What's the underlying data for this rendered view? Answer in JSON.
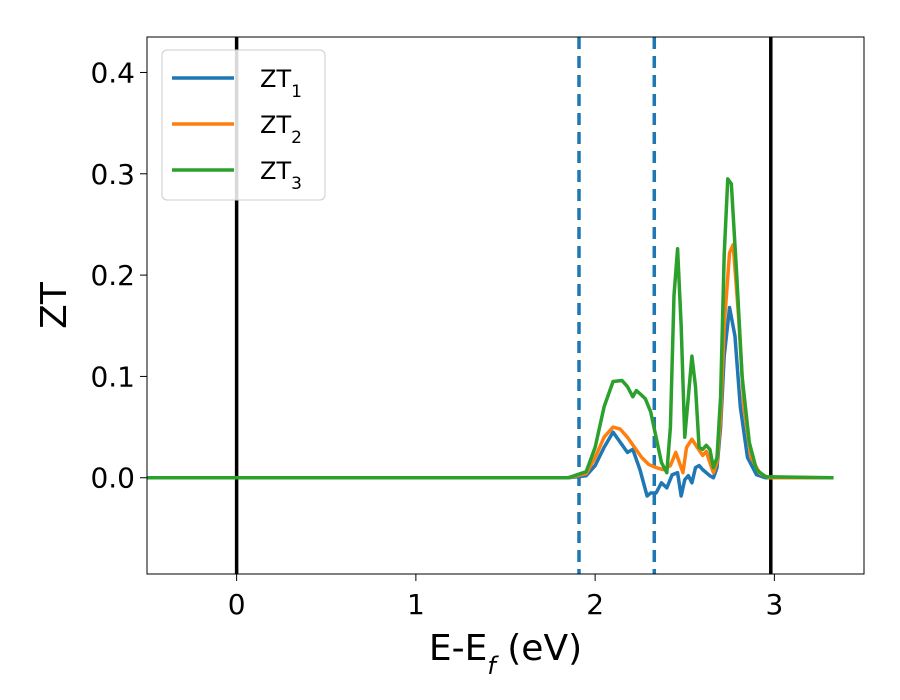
{
  "chart_data": {
    "type": "line",
    "xlabel": "E-E_f (eV)",
    "ylabel": "ZT",
    "xlim": [
      -0.5,
      3.5
    ],
    "ylim": [
      -0.095,
      0.435
    ],
    "xticks": [
      0,
      1,
      2,
      3
    ],
    "yticks": [
      0.0,
      0.1,
      0.2,
      0.3,
      0.4
    ],
    "xtick_labels": [
      "0",
      "1",
      "2",
      "3"
    ],
    "ytick_labels": [
      "0.0",
      "0.1",
      "0.2",
      "0.3",
      "0.4"
    ],
    "grid": false,
    "legend_position": "upper-left",
    "vlines_solid": [
      0.0,
      2.98
    ],
    "vlines_dashed": [
      1.91,
      2.33
    ],
    "series": [
      {
        "name": "ZT_1",
        "color": "#1f77b4",
        "points": [
          [
            -0.5,
            0
          ],
          [
            1.85,
            0
          ],
          [
            1.95,
            0.002
          ],
          [
            2.0,
            0.012
          ],
          [
            2.05,
            0.03
          ],
          [
            2.1,
            0.045
          ],
          [
            2.14,
            0.035
          ],
          [
            2.18,
            0.025
          ],
          [
            2.21,
            0.028
          ],
          [
            2.25,
            0.008
          ],
          [
            2.29,
            -0.018
          ],
          [
            2.31,
            -0.015
          ],
          [
            2.34,
            -0.015
          ],
          [
            2.37,
            -0.005
          ],
          [
            2.4,
            -0.01
          ],
          [
            2.43,
            0.003
          ],
          [
            2.46,
            0.005
          ],
          [
            2.48,
            -0.018
          ],
          [
            2.5,
            -0.002
          ],
          [
            2.52,
            0.002
          ],
          [
            2.54,
            -0.005
          ],
          [
            2.56,
            0.01
          ],
          [
            2.58,
            0.012
          ],
          [
            2.6,
            0.008
          ],
          [
            2.62,
            0.005
          ],
          [
            2.64,
            0.002
          ],
          [
            2.66,
            0.0
          ],
          [
            2.68,
            0.01
          ],
          [
            2.7,
            0.05
          ],
          [
            2.72,
            0.12
          ],
          [
            2.75,
            0.168
          ],
          [
            2.78,
            0.14
          ],
          [
            2.81,
            0.07
          ],
          [
            2.85,
            0.02
          ],
          [
            2.9,
            0.003
          ],
          [
            2.95,
            0.0
          ],
          [
            3.33,
            0
          ]
        ]
      },
      {
        "name": "ZT_2",
        "color": "#ff7f0e",
        "points": [
          [
            -0.5,
            0
          ],
          [
            1.85,
            0
          ],
          [
            1.95,
            0.004
          ],
          [
            2.0,
            0.02
          ],
          [
            2.05,
            0.04
          ],
          [
            2.1,
            0.05
          ],
          [
            2.14,
            0.048
          ],
          [
            2.18,
            0.04
          ],
          [
            2.22,
            0.03
          ],
          [
            2.26,
            0.02
          ],
          [
            2.3,
            0.013
          ],
          [
            2.34,
            0.01
          ],
          [
            2.38,
            0.008
          ],
          [
            2.42,
            0.012
          ],
          [
            2.45,
            0.025
          ],
          [
            2.47,
            0.015
          ],
          [
            2.49,
            0.005
          ],
          [
            2.51,
            0.03
          ],
          [
            2.54,
            0.038
          ],
          [
            2.57,
            0.03
          ],
          [
            2.6,
            0.022
          ],
          [
            2.62,
            0.026
          ],
          [
            2.64,
            0.015
          ],
          [
            2.66,
            0.005
          ],
          [
            2.68,
            0.015
          ],
          [
            2.7,
            0.06
          ],
          [
            2.72,
            0.15
          ],
          [
            2.75,
            0.222
          ],
          [
            2.77,
            0.23
          ],
          [
            2.8,
            0.16
          ],
          [
            2.83,
            0.07
          ],
          [
            2.87,
            0.02
          ],
          [
            2.92,
            0.004
          ],
          [
            2.97,
            0.0
          ],
          [
            3.33,
            0
          ]
        ]
      },
      {
        "name": "ZT_3",
        "color": "#2ca02c",
        "points": [
          [
            -0.5,
            0
          ],
          [
            1.85,
            0
          ],
          [
            1.95,
            0.006
          ],
          [
            2.0,
            0.03
          ],
          [
            2.05,
            0.07
          ],
          [
            2.1,
            0.095
          ],
          [
            2.15,
            0.096
          ],
          [
            2.18,
            0.09
          ],
          [
            2.21,
            0.08
          ],
          [
            2.23,
            0.086
          ],
          [
            2.25,
            0.083
          ],
          [
            2.28,
            0.078
          ],
          [
            2.31,
            0.065
          ],
          [
            2.34,
            0.04
          ],
          [
            2.37,
            0.015
          ],
          [
            2.4,
            0.005
          ],
          [
            2.42,
            0.05
          ],
          [
            2.44,
            0.18
          ],
          [
            2.46,
            0.226
          ],
          [
            2.48,
            0.15
          ],
          [
            2.5,
            0.04
          ],
          [
            2.52,
            0.08
          ],
          [
            2.54,
            0.12
          ],
          [
            2.56,
            0.09
          ],
          [
            2.58,
            0.03
          ],
          [
            2.6,
            0.028
          ],
          [
            2.62,
            0.032
          ],
          [
            2.64,
            0.028
          ],
          [
            2.66,
            0.01
          ],
          [
            2.68,
            0.02
          ],
          [
            2.7,
            0.08
          ],
          [
            2.72,
            0.22
          ],
          [
            2.74,
            0.295
          ],
          [
            2.76,
            0.29
          ],
          [
            2.79,
            0.2
          ],
          [
            2.82,
            0.1
          ],
          [
            2.86,
            0.035
          ],
          [
            2.9,
            0.008
          ],
          [
            2.95,
            0.001
          ],
          [
            3.33,
            0
          ]
        ]
      }
    ]
  }
}
